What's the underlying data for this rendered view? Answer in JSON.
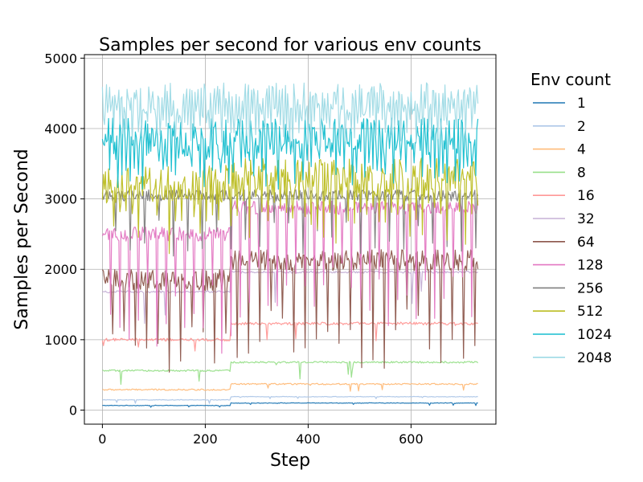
{
  "chart_data": {
    "type": "line",
    "title": "Samples per second for various env counts",
    "xlabel": "Step",
    "ylabel": "Samples per Second",
    "xlim": [
      -35,
      765
    ],
    "ylim": [
      -200,
      5050
    ],
    "xticks": [
      0,
      200,
      400,
      600
    ],
    "yticks": [
      0,
      1000,
      2000,
      3000,
      4000,
      5000
    ],
    "grid": true,
    "legend": {
      "title": "Env count",
      "placement": "outside-right"
    },
    "x_max": 730,
    "series": [
      {
        "name": "1",
        "color": "#1f77b4",
        "before": 65,
        "after": 100,
        "noise": 4,
        "dip_depth": 50,
        "dip_every": 0,
        "data_start": 0,
        "data_end": 730
      },
      {
        "name": "2",
        "color": "#aec7e8",
        "before": 145,
        "after": 190,
        "noise": 4,
        "dip_depth": 60,
        "dip_every": 0,
        "data_start": 0,
        "data_end": 730
      },
      {
        "name": "4",
        "color": "#ffbb78",
        "before": 290,
        "after": 370,
        "noise": 10,
        "dip_depth": 120,
        "dip_every": 0,
        "data_start": 0,
        "data_end": 730
      },
      {
        "name": "8",
        "color": "#98df8a",
        "before": 560,
        "after": 680,
        "noise": 12,
        "dip_depth": 250,
        "dip_every": 0,
        "data_start": 0,
        "data_end": 730
      },
      {
        "name": "16",
        "color": "#ff9896",
        "before": 1000,
        "after": 1230,
        "noise": 20,
        "dip_depth": 250,
        "dip_every": 0,
        "data_start": 0,
        "data_end": 730
      },
      {
        "name": "32",
        "color": "#c5b0d5",
        "before": 1680,
        "after": 1960,
        "noise": 15,
        "dip_depth": 450,
        "dip_every": 0,
        "data_start": 0,
        "data_end": 730
      },
      {
        "name": "64",
        "color": "#8c564b",
        "before": 1850,
        "after": 2130,
        "noise": 150,
        "dip_depth": 1500,
        "dip_every": 11,
        "data_start": 0,
        "data_end": 730
      },
      {
        "name": "128",
        "color": "#e377c2",
        "before": 2500,
        "after": 2880,
        "noise": 100,
        "dip_depth": 1800,
        "dip_every": 9,
        "data_start": 0,
        "data_end": 730
      },
      {
        "name": "256",
        "color": "#7f7f7f",
        "before": 3050,
        "after": 3050,
        "noise": 80,
        "dip_depth": 900,
        "dip_every": 14,
        "data_start": 0,
        "data_end": 730
      },
      {
        "name": "512",
        "color": "#bcbd22",
        "before": 3200,
        "after": 3300,
        "noise": 280,
        "dip_depth": 750,
        "dip_every": 6,
        "data_start": 0,
        "data_end": 730
      },
      {
        "name": "1024",
        "color": "#17becf",
        "before": 3850,
        "after": 3850,
        "noise": 300,
        "dip_depth": 450,
        "dip_every": 4,
        "data_start": 0,
        "data_end": 730
      },
      {
        "name": "2048",
        "color": "#9edae5",
        "before": 4400,
        "after": 4400,
        "noise": 250,
        "dip_depth": 500,
        "dip_every": 3,
        "data_start": 0,
        "data_end": 730
      }
    ],
    "step_change_at": 250
  }
}
